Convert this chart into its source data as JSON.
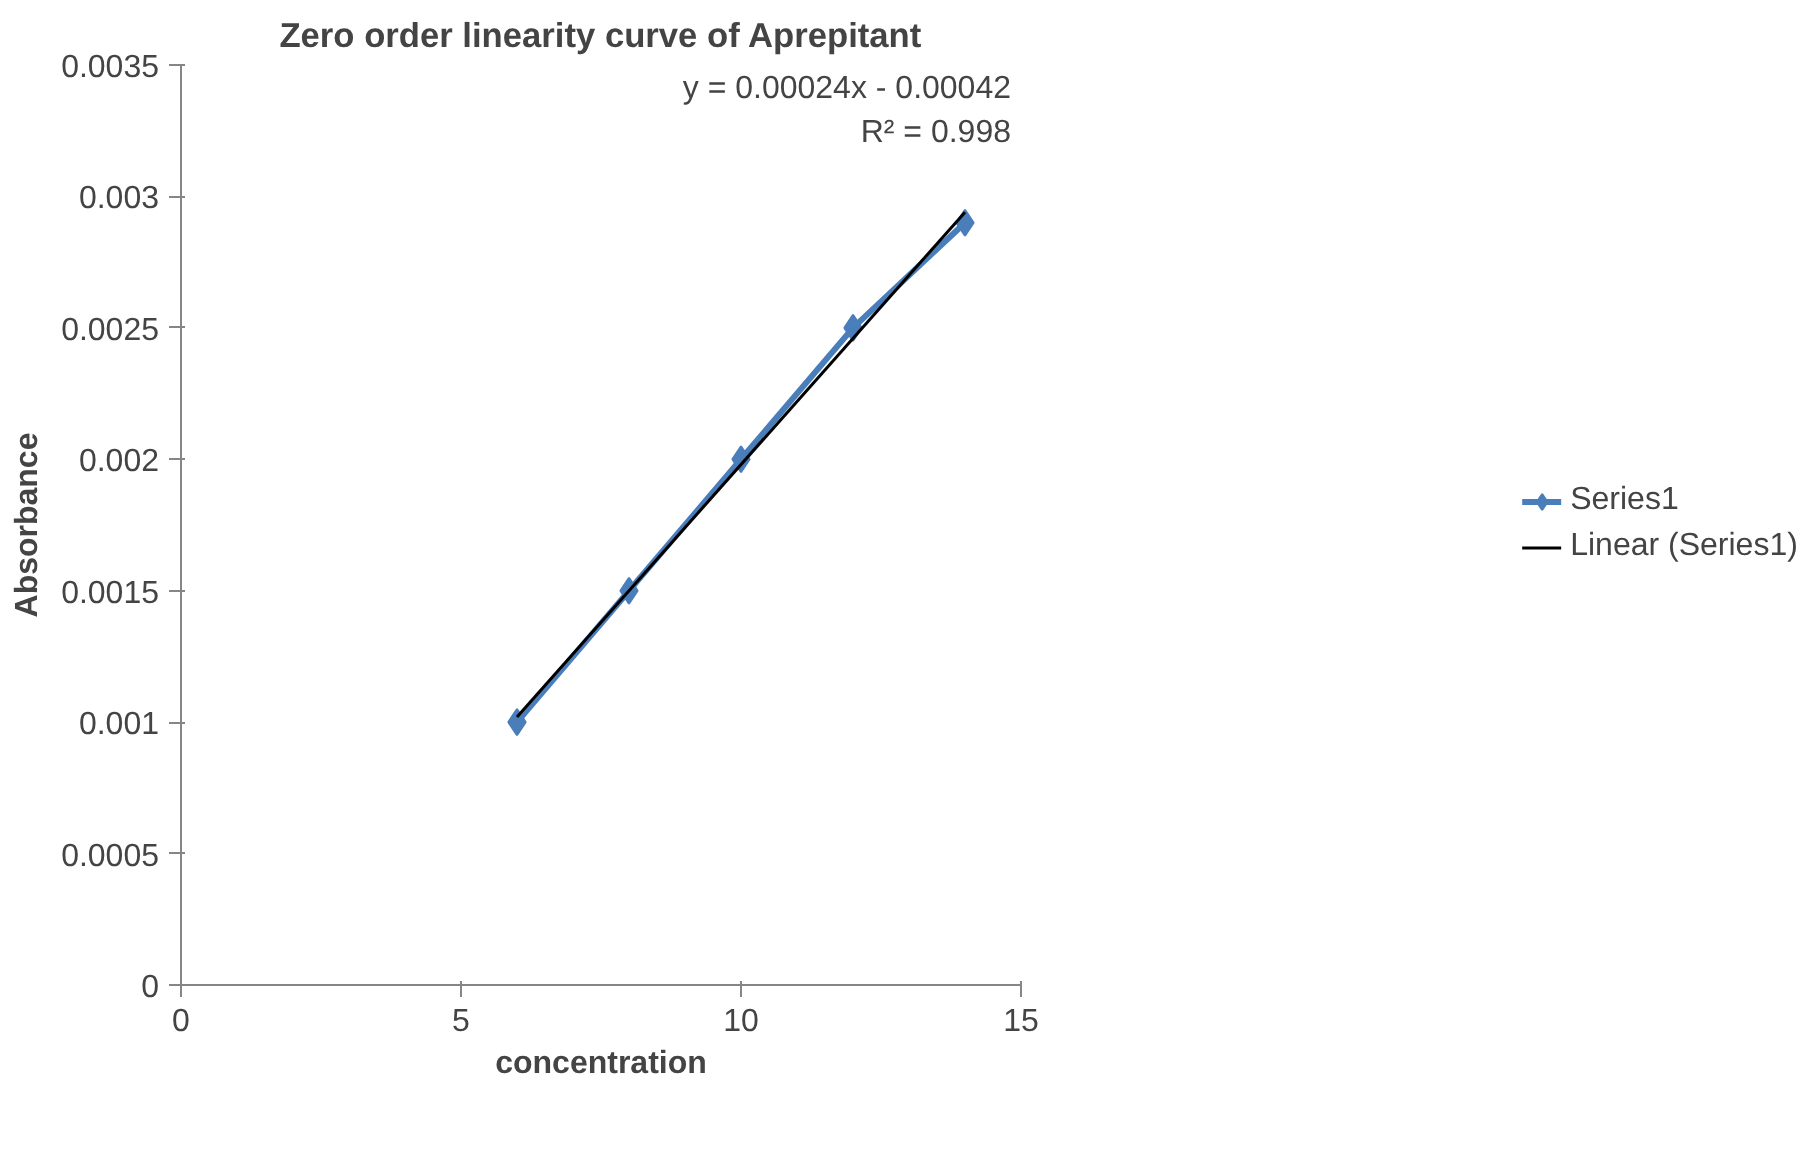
{
  "chart_data": {
    "type": "line",
    "title": "Zero order linearity curve of Aprepitant",
    "xlabel": "concentration",
    "ylabel": "Absorbance",
    "xlim": [
      0,
      15
    ],
    "xticks": [
      0,
      5,
      10,
      15
    ],
    "ylim": [
      0,
      0.0035
    ],
    "yticks": [
      0,
      0.0005,
      0.001,
      0.0015,
      0.002,
      0.0025,
      0.003,
      0.0035
    ],
    "series": [
      {
        "name": "Series1",
        "color": "#4a7ebb",
        "x": [
          6,
          8,
          10,
          12,
          14
        ],
        "values": [
          0.001,
          0.0015,
          0.002,
          0.0025,
          0.0029
        ],
        "marker": "diamond",
        "line_style": "solid"
      },
      {
        "name": "Linear (Series1)",
        "type": "line",
        "color": "#000000",
        "x": [
          6,
          14
        ],
        "values": [
          0.00102,
          0.00294
        ],
        "marker": "none",
        "line_style": "solid"
      }
    ],
    "annotations": [
      "y = 0.00024x - 0.00042",
      "R² = 0.998"
    ],
    "grid": false,
    "legend": "right"
  }
}
